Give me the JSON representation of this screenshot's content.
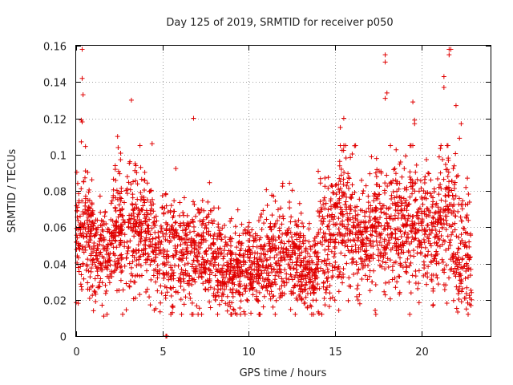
{
  "chart_data": {
    "type": "scatter",
    "title": "Day 125 of 2019, SRMTID for receiver p050",
    "xlabel": "GPS time / hours",
    "ylabel": "SRMTID / TECUs",
    "xlim": [
      0,
      24
    ],
    "ylim": [
      0,
      0.16
    ],
    "xticks": [
      0,
      5,
      10,
      15,
      20
    ],
    "xtick_labels": [
      "0",
      "5",
      "10",
      "15",
      "20"
    ],
    "yticks": [
      0,
      0.02,
      0.04,
      0.06,
      0.08,
      0.1,
      0.12,
      0.14,
      0.16
    ],
    "ytick_labels": [
      "0",
      "0.02",
      "0.04",
      "0.06",
      "0.08",
      "0.1",
      "0.12",
      "0.14",
      "0.16"
    ],
    "grid": true,
    "marker": "plus",
    "color": "#e00000",
    "outliers": [
      {
        "x": 0.35,
        "y": 0.158
      },
      {
        "x": 0.35,
        "y": 0.142
      },
      {
        "x": 0.4,
        "y": 0.133
      },
      {
        "x": 0.3,
        "y": 0.119
      },
      {
        "x": 0.35,
        "y": 0.118
      },
      {
        "x": 0.3,
        "y": 0.107
      },
      {
        "x": 3.2,
        "y": 0.13
      },
      {
        "x": 2.4,
        "y": 0.11
      },
      {
        "x": 4.4,
        "y": 0.106
      },
      {
        "x": 6.8,
        "y": 0.12
      },
      {
        "x": 15.5,
        "y": 0.12
      },
      {
        "x": 15.3,
        "y": 0.115
      },
      {
        "x": 17.9,
        "y": 0.155
      },
      {
        "x": 17.9,
        "y": 0.151
      },
      {
        "x": 18.0,
        "y": 0.134
      },
      {
        "x": 17.9,
        "y": 0.131
      },
      {
        "x": 19.5,
        "y": 0.129
      },
      {
        "x": 19.6,
        "y": 0.119
      },
      {
        "x": 19.6,
        "y": 0.117
      },
      {
        "x": 21.3,
        "y": 0.143
      },
      {
        "x": 21.3,
        "y": 0.137
      },
      {
        "x": 21.6,
        "y": 0.158
      },
      {
        "x": 21.6,
        "y": 0.155
      },
      {
        "x": 21.7,
        "y": 0.158
      },
      {
        "x": 22.0,
        "y": 0.127
      },
      {
        "x": 22.3,
        "y": 0.117
      },
      {
        "x": 22.2,
        "y": 0.109
      },
      {
        "x": 1.6,
        "y": 0.011
      },
      {
        "x": 22.8,
        "y": 0.021
      },
      {
        "x": 22.9,
        "y": 0.02
      },
      {
        "x": 5.2,
        "y": 0.0
      },
      {
        "x": 5.25,
        "y": 0.0
      }
    ],
    "segments": [
      {
        "x0": 0.0,
        "x1": 1.0,
        "mean": 0.055,
        "spread": 0.018,
        "n": 150
      },
      {
        "x0": 1.0,
        "x1": 2.0,
        "mean": 0.045,
        "spread": 0.014,
        "n": 120
      },
      {
        "x0": 2.0,
        "x1": 3.0,
        "mean": 0.06,
        "spread": 0.018,
        "n": 140
      },
      {
        "x0": 3.0,
        "x1": 4.0,
        "mean": 0.058,
        "spread": 0.017,
        "n": 140
      },
      {
        "x0": 4.0,
        "x1": 5.0,
        "mean": 0.05,
        "spread": 0.015,
        "n": 120
      },
      {
        "x0": 5.0,
        "x1": 6.0,
        "mean": 0.045,
        "spread": 0.016,
        "n": 120
      },
      {
        "x0": 6.0,
        "x1": 7.0,
        "mean": 0.047,
        "spread": 0.015,
        "n": 130
      },
      {
        "x0": 7.0,
        "x1": 8.0,
        "mean": 0.043,
        "spread": 0.014,
        "n": 130
      },
      {
        "x0": 8.0,
        "x1": 9.0,
        "mean": 0.038,
        "spread": 0.012,
        "n": 130
      },
      {
        "x0": 9.0,
        "x1": 10.0,
        "mean": 0.036,
        "spread": 0.012,
        "n": 130
      },
      {
        "x0": 10.0,
        "x1": 11.0,
        "mean": 0.038,
        "spread": 0.013,
        "n": 130
      },
      {
        "x0": 11.0,
        "x1": 12.0,
        "mean": 0.045,
        "spread": 0.015,
        "n": 130
      },
      {
        "x0": 12.0,
        "x1": 13.0,
        "mean": 0.047,
        "spread": 0.015,
        "n": 130
      },
      {
        "x0": 13.0,
        "x1": 14.0,
        "mean": 0.035,
        "spread": 0.011,
        "n": 140
      },
      {
        "x0": 14.0,
        "x1": 15.0,
        "mean": 0.05,
        "spread": 0.02,
        "n": 130
      },
      {
        "x0": 15.0,
        "x1": 16.0,
        "mean": 0.065,
        "spread": 0.018,
        "n": 140
      },
      {
        "x0": 16.0,
        "x1": 17.0,
        "mean": 0.052,
        "spread": 0.016,
        "n": 120
      },
      {
        "x0": 17.0,
        "x1": 18.0,
        "mean": 0.058,
        "spread": 0.017,
        "n": 130
      },
      {
        "x0": 18.0,
        "x1": 19.0,
        "mean": 0.06,
        "spread": 0.018,
        "n": 130
      },
      {
        "x0": 19.0,
        "x1": 20.0,
        "mean": 0.062,
        "spread": 0.018,
        "n": 130
      },
      {
        "x0": 20.0,
        "x1": 21.0,
        "mean": 0.06,
        "spread": 0.018,
        "n": 130
      },
      {
        "x0": 21.0,
        "x1": 22.0,
        "mean": 0.065,
        "spread": 0.02,
        "n": 130
      },
      {
        "x0": 22.0,
        "x1": 22.9,
        "mean": 0.045,
        "spread": 0.016,
        "n": 110
      }
    ]
  }
}
